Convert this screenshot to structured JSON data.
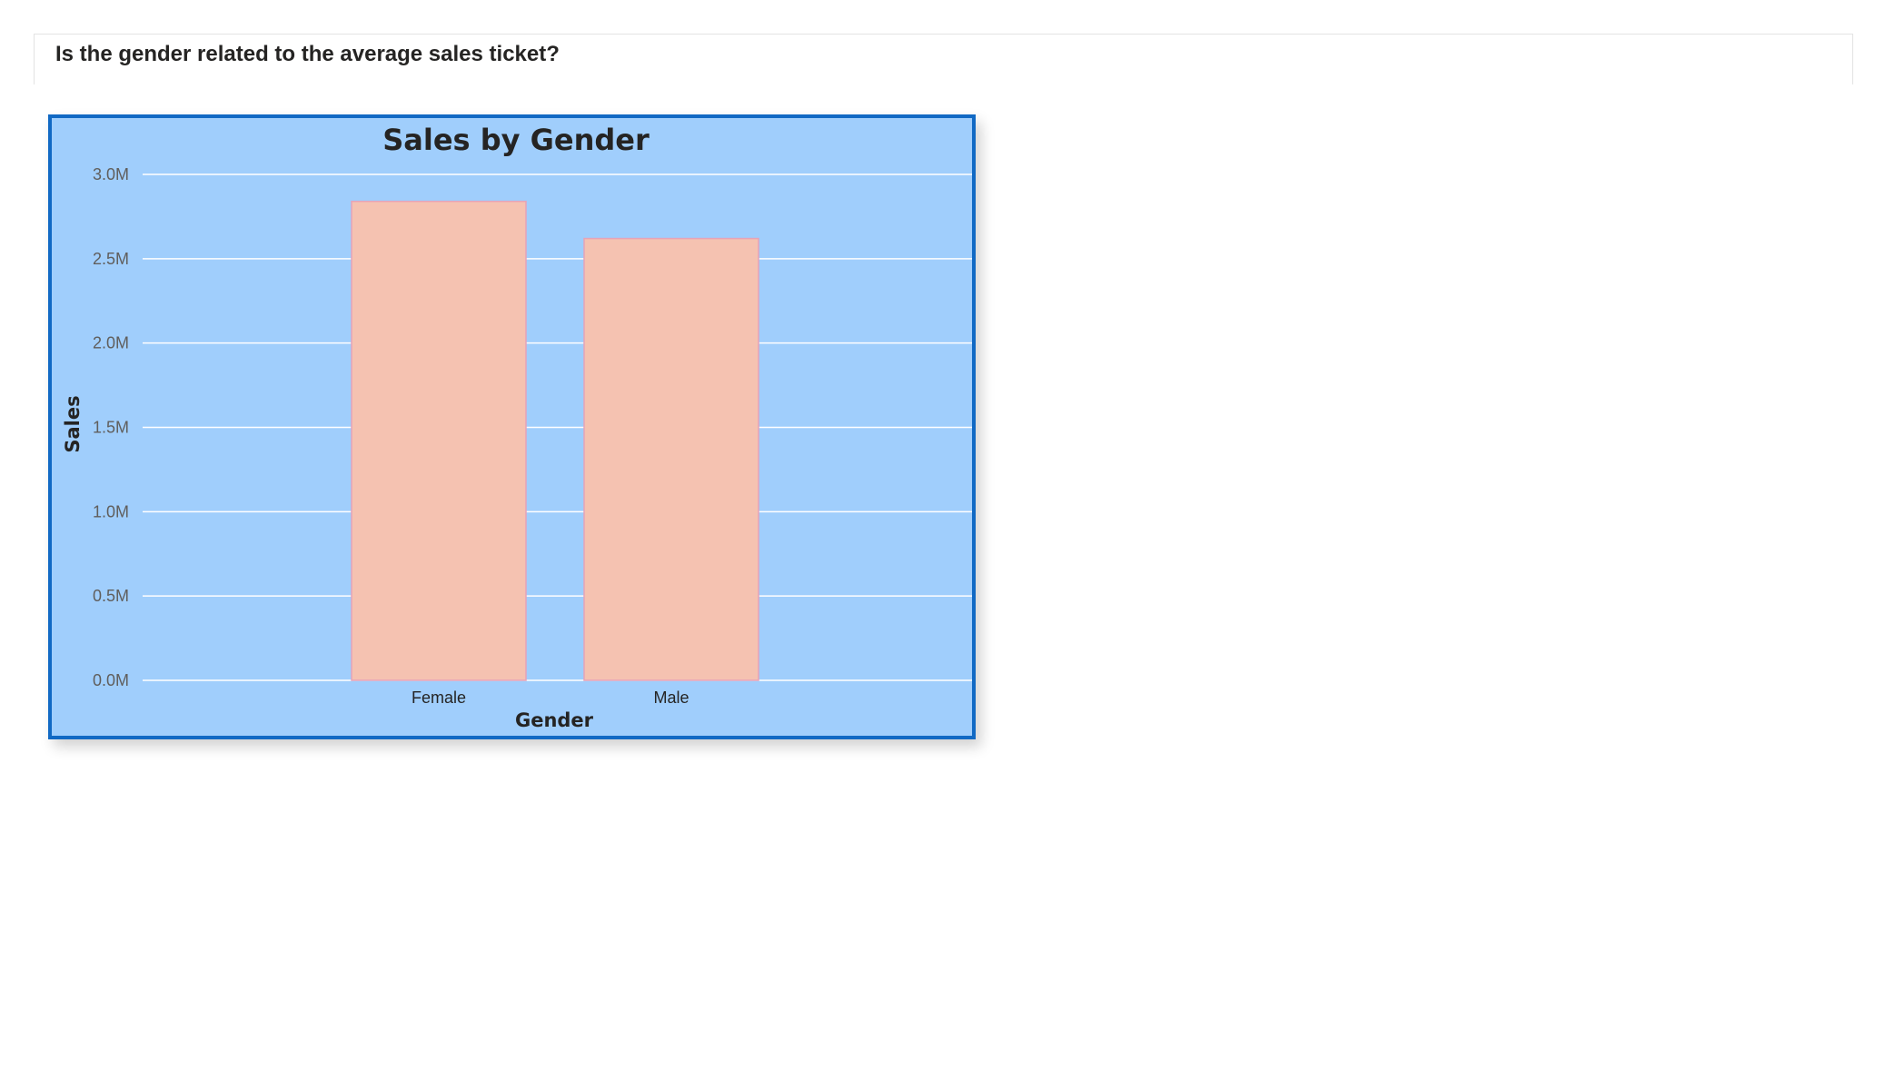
{
  "page": {
    "question": "Is the gender related to the average sales ticket?"
  },
  "chart_data": {
    "type": "bar",
    "title": "Sales by Gender",
    "categories": [
      "Female",
      "Male"
    ],
    "values": [
      2840000,
      2620000
    ],
    "xlabel": "Gender",
    "ylabel": "Sales",
    "ylim": [
      0,
      3000000
    ],
    "yticks": [
      0,
      500000,
      1000000,
      1500000,
      2000000,
      2500000,
      3000000
    ],
    "ytick_labels": [
      "0.0M",
      "0.5M",
      "1.0M",
      "1.5M",
      "2.0M",
      "2.5M",
      "3.0M"
    ],
    "grid": true,
    "colors": {
      "background": "#a0cefc",
      "border": "#1169c4",
      "bar_fill": "#f5c2b1",
      "bar_stroke": "#e5a3b8",
      "gridline": "#ffffff"
    }
  }
}
